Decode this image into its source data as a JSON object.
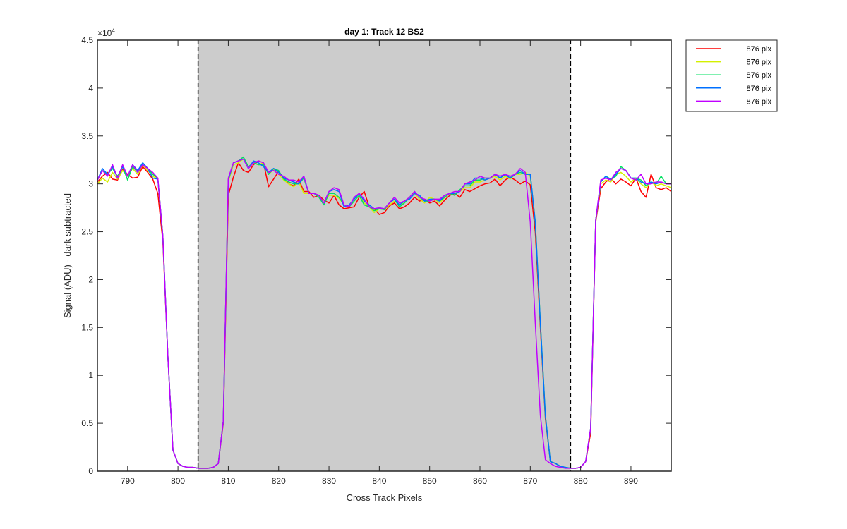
{
  "chart_data": {
    "type": "line",
    "title": "day 1: Track 12  BS2",
    "xlabel": "Cross Track Pixels",
    "ylabel": "Signal (ADU) - dark subtracted",
    "y_exponent_label": "×10",
    "y_exponent_power": "4",
    "xlim": [
      784,
      898
    ],
    "ylim": [
      0,
      4.5
    ],
    "y_scale_factor": 10000,
    "x_ticks": [
      790,
      800,
      810,
      820,
      830,
      840,
      850,
      860,
      870,
      880,
      890
    ],
    "x_tick_labels": [
      "790",
      "800",
      "810",
      "820",
      "830",
      "840",
      "850",
      "860",
      "870",
      "880",
      "890"
    ],
    "y_ticks": [
      0,
      0.5,
      1,
      1.5,
      2,
      2.5,
      3,
      3.5,
      4,
      4.5
    ],
    "y_tick_labels": [
      "0",
      "0.5",
      "1",
      "1.5",
      "2",
      "2.5",
      "3",
      "3.5",
      "4",
      "4.5"
    ],
    "shaded_region": {
      "x": [
        804,
        878
      ],
      "color": "#cccccc"
    },
    "vertical_dashed_lines": [
      804,
      878
    ],
    "grid": false,
    "legend_position": "outside-top-right",
    "series": [
      {
        "name": "876 pix",
        "color": "#ff0000",
        "x": [
          784,
          785,
          786,
          787,
          788,
          789,
          790,
          791,
          792,
          793,
          794,
          795,
          796,
          797,
          798,
          799,
          800,
          801,
          802,
          803,
          804,
          805,
          806,
          807,
          808,
          809,
          810,
          811,
          812,
          813,
          814,
          815,
          816,
          817,
          818,
          819,
          820,
          821,
          822,
          823,
          824,
          825,
          826,
          827,
          828,
          829,
          830,
          831,
          832,
          833,
          834,
          835,
          836,
          837,
          838,
          839,
          840,
          841,
          842,
          843,
          844,
          845,
          846,
          847,
          848,
          849,
          850,
          851,
          852,
          853,
          854,
          855,
          856,
          857,
          858,
          859,
          860,
          861,
          862,
          863,
          864,
          865,
          866,
          867,
          868,
          869,
          870,
          871,
          872,
          873,
          874,
          875,
          876,
          877,
          878,
          879,
          880,
          881,
          882,
          883,
          884,
          885,
          886,
          887,
          888,
          889,
          890,
          891,
          892,
          893,
          894,
          895,
          896,
          897,
          898
        ],
        "y": [
          3.02,
          3.08,
          3.12,
          3.05,
          3.04,
          3.15,
          3.1,
          3.06,
          3.07,
          3.18,
          3.12,
          3.05,
          2.9,
          2.4,
          1.2,
          0.22,
          0.08,
          0.05,
          0.04,
          0.04,
          0.03,
          0.03,
          0.03,
          0.04,
          0.08,
          0.5,
          2.88,
          3.07,
          3.22,
          3.14,
          3.12,
          3.2,
          3.24,
          3.22,
          2.97,
          3.05,
          3.13,
          3.06,
          3.0,
          2.98,
          3.05,
          2.92,
          2.92,
          2.86,
          2.88,
          2.83,
          2.8,
          2.88,
          2.78,
          2.74,
          2.75,
          2.76,
          2.86,
          2.92,
          2.76,
          2.74,
          2.68,
          2.7,
          2.77,
          2.8,
          2.74,
          2.76,
          2.8,
          2.86,
          2.82,
          2.84,
          2.8,
          2.82,
          2.77,
          2.83,
          2.88,
          2.9,
          2.86,
          2.94,
          2.92,
          2.95,
          2.98,
          3.0,
          3.01,
          3.05,
          2.98,
          3.04,
          3.07,
          3.04,
          3.0,
          3.03,
          2.99,
          2.5,
          1.5,
          0.55,
          0.1,
          0.08,
          0.05,
          0.04,
          0.03,
          0.03,
          0.04,
          0.1,
          0.4,
          2.6,
          2.95,
          3.02,
          3.06,
          3.0,
          3.05,
          3.02,
          2.98,
          3.06,
          2.92,
          2.86,
          3.1,
          2.96,
          2.94,
          2.96,
          2.92
        ]
      },
      {
        "name": "876 pix",
        "color": "#d4f000",
        "x": [
          784,
          785,
          786,
          787,
          788,
          789,
          790,
          791,
          792,
          793,
          794,
          795,
          796,
          797,
          798,
          799,
          800,
          801,
          802,
          803,
          804,
          805,
          806,
          807,
          808,
          809,
          810,
          811,
          812,
          813,
          814,
          815,
          816,
          817,
          818,
          819,
          820,
          821,
          822,
          823,
          824,
          825,
          826,
          827,
          828,
          829,
          830,
          831,
          832,
          833,
          834,
          835,
          836,
          837,
          838,
          839,
          840,
          841,
          842,
          843,
          844,
          845,
          846,
          847,
          848,
          849,
          850,
          851,
          852,
          853,
          854,
          855,
          856,
          857,
          858,
          859,
          860,
          861,
          862,
          863,
          864,
          865,
          866,
          867,
          868,
          869,
          870,
          871,
          872,
          873,
          874,
          875,
          876,
          877,
          878,
          879,
          880,
          881,
          882,
          883,
          884,
          885,
          886,
          887,
          888,
          889,
          890,
          891,
          892,
          893,
          894,
          895,
          896,
          897,
          898
        ],
        "y": [
          3.0,
          3.06,
          3.02,
          3.12,
          3.05,
          3.14,
          3.08,
          3.16,
          3.1,
          3.2,
          3.14,
          3.08,
          3.05,
          2.45,
          1.2,
          0.22,
          0.08,
          0.05,
          0.04,
          0.04,
          0.03,
          0.03,
          0.03,
          0.04,
          0.08,
          0.52,
          3.02,
          3.2,
          3.22,
          3.26,
          3.18,
          3.22,
          3.2,
          3.22,
          3.1,
          3.15,
          3.1,
          3.04,
          3.0,
          2.97,
          3.02,
          2.9,
          2.9,
          2.9,
          2.88,
          2.8,
          2.88,
          2.88,
          2.85,
          2.78,
          2.76,
          2.82,
          2.88,
          2.8,
          2.76,
          2.7,
          2.74,
          2.73,
          2.78,
          2.82,
          2.78,
          2.8,
          2.86,
          2.9,
          2.84,
          2.8,
          2.86,
          2.84,
          2.8,
          2.86,
          2.9,
          2.9,
          2.92,
          2.96,
          2.96,
          3.02,
          3.02,
          3.04,
          3.06,
          3.08,
          3.04,
          3.08,
          3.05,
          3.1,
          3.1,
          3.12,
          3.08,
          2.6,
          1.55,
          0.58,
          0.1,
          0.08,
          0.05,
          0.04,
          0.03,
          0.03,
          0.04,
          0.1,
          0.45,
          2.62,
          3.0,
          3.04,
          3.02,
          3.1,
          3.12,
          3.08,
          3.02,
          3.06,
          3.0,
          2.96,
          3.02,
          2.98,
          3.0,
          2.98,
          2.96
        ]
      },
      {
        "name": "876 pix",
        "color": "#00e060",
        "x": [
          784,
          785,
          786,
          787,
          788,
          789,
          790,
          791,
          792,
          793,
          794,
          795,
          796,
          797,
          798,
          799,
          800,
          801,
          802,
          803,
          804,
          805,
          806,
          807,
          808,
          809,
          810,
          811,
          812,
          813,
          814,
          815,
          816,
          817,
          818,
          819,
          820,
          821,
          822,
          823,
          824,
          825,
          826,
          827,
          828,
          829,
          830,
          831,
          832,
          833,
          834,
          835,
          836,
          837,
          838,
          839,
          840,
          841,
          842,
          843,
          844,
          845,
          846,
          847,
          848,
          849,
          850,
          851,
          852,
          853,
          854,
          855,
          856,
          857,
          858,
          859,
          860,
          861,
          862,
          863,
          864,
          865,
          866,
          867,
          868,
          869,
          870,
          871,
          872,
          873,
          874,
          875,
          876,
          877,
          878,
          879,
          880,
          881,
          882,
          883,
          884,
          885,
          886,
          887,
          888,
          889,
          890,
          891,
          892,
          893,
          894,
          895,
          896,
          897,
          898
        ],
        "y": [
          3.04,
          3.14,
          3.1,
          3.16,
          3.08,
          3.18,
          3.04,
          3.18,
          3.12,
          3.22,
          3.16,
          3.1,
          3.06,
          2.45,
          1.2,
          0.22,
          0.08,
          0.05,
          0.04,
          0.04,
          0.03,
          0.03,
          0.03,
          0.04,
          0.08,
          0.52,
          3.04,
          3.22,
          3.24,
          3.28,
          3.18,
          3.22,
          3.2,
          3.2,
          3.1,
          3.16,
          3.14,
          3.05,
          3.02,
          3.0,
          3.0,
          3.06,
          2.9,
          2.9,
          2.86,
          2.78,
          2.9,
          2.9,
          2.86,
          2.78,
          2.76,
          2.82,
          2.88,
          2.78,
          2.76,
          2.72,
          2.74,
          2.73,
          2.8,
          2.84,
          2.76,
          2.8,
          2.86,
          2.92,
          2.86,
          2.82,
          2.82,
          2.84,
          2.82,
          2.86,
          2.9,
          2.88,
          2.94,
          2.98,
          2.98,
          3.04,
          3.04,
          3.06,
          3.06,
          3.1,
          3.06,
          3.1,
          3.06,
          3.1,
          3.12,
          3.1,
          3.1,
          2.6,
          1.55,
          0.58,
          0.1,
          0.08,
          0.05,
          0.04,
          0.03,
          0.03,
          0.04,
          0.1,
          0.45,
          2.62,
          3.02,
          3.08,
          3.05,
          3.08,
          3.18,
          3.14,
          3.06,
          3.06,
          3.04,
          2.98,
          3.02,
          3.0,
          3.08,
          3.0,
          3.0
        ]
      },
      {
        "name": "876 pix",
        "color": "#0070ff",
        "x": [
          784,
          785,
          786,
          787,
          788,
          789,
          790,
          791,
          792,
          793,
          794,
          795,
          796,
          797,
          798,
          799,
          800,
          801,
          802,
          803,
          804,
          805,
          806,
          807,
          808,
          809,
          810,
          811,
          812,
          813,
          814,
          815,
          816,
          817,
          818,
          819,
          820,
          821,
          822,
          823,
          824,
          825,
          826,
          827,
          828,
          829,
          830,
          831,
          832,
          833,
          834,
          835,
          836,
          837,
          838,
          839,
          840,
          841,
          842,
          843,
          844,
          845,
          846,
          847,
          848,
          849,
          850,
          851,
          852,
          853,
          854,
          855,
          856,
          857,
          858,
          859,
          860,
          861,
          862,
          863,
          864,
          865,
          866,
          867,
          868,
          869,
          870,
          871,
          872,
          873,
          874,
          875,
          876,
          877,
          878,
          879,
          880,
          881,
          882,
          883,
          884,
          885,
          886,
          887,
          888,
          889,
          890,
          891,
          892,
          893,
          894,
          895,
          896,
          897,
          898
        ],
        "y": [
          3.04,
          3.16,
          3.1,
          3.18,
          3.06,
          3.18,
          3.08,
          3.2,
          3.14,
          3.22,
          3.16,
          3.06,
          3.05,
          2.45,
          1.2,
          0.22,
          0.08,
          0.05,
          0.04,
          0.04,
          0.03,
          0.03,
          0.03,
          0.04,
          0.08,
          0.52,
          3.04,
          3.22,
          3.24,
          3.26,
          3.16,
          3.24,
          3.22,
          3.18,
          3.12,
          3.16,
          3.12,
          3.06,
          3.04,
          3.02,
          3.0,
          3.08,
          2.9,
          2.9,
          2.88,
          2.8,
          2.92,
          2.94,
          2.92,
          2.76,
          2.78,
          2.84,
          2.9,
          2.82,
          2.78,
          2.74,
          2.75,
          2.74,
          2.8,
          2.84,
          2.78,
          2.82,
          2.84,
          2.9,
          2.88,
          2.82,
          2.84,
          2.84,
          2.82,
          2.88,
          2.9,
          2.9,
          2.92,
          3.0,
          3.0,
          3.06,
          3.06,
          3.04,
          3.06,
          3.1,
          3.06,
          3.1,
          3.06,
          3.1,
          3.14,
          3.1,
          3.1,
          2.6,
          1.55,
          0.58,
          0.1,
          0.08,
          0.05,
          0.04,
          0.03,
          0.03,
          0.04,
          0.1,
          0.45,
          2.62,
          3.02,
          3.08,
          3.04,
          3.1,
          3.16,
          3.14,
          3.06,
          3.06,
          3.02,
          3.0,
          3.02,
          3.0,
          3.02,
          3.0,
          3.0
        ]
      },
      {
        "name": "876 pix",
        "color": "#c000ff",
        "x": [
          784,
          785,
          786,
          787,
          788,
          789,
          790,
          791,
          792,
          793,
          794,
          795,
          796,
          797,
          798,
          799,
          800,
          801,
          802,
          803,
          804,
          805,
          806,
          807,
          808,
          809,
          810,
          811,
          812,
          813,
          814,
          815,
          816,
          817,
          818,
          819,
          820,
          821,
          822,
          823,
          824,
          825,
          826,
          827,
          828,
          829,
          830,
          831,
          832,
          833,
          834,
          835,
          836,
          837,
          838,
          839,
          840,
          841,
          842,
          843,
          844,
          845,
          846,
          847,
          848,
          849,
          850,
          851,
          852,
          853,
          854,
          855,
          856,
          857,
          858,
          859,
          860,
          861,
          862,
          863,
          864,
          865,
          866,
          867,
          868,
          869,
          870,
          871,
          872,
          873,
          874,
          875,
          876,
          877,
          878,
          879,
          880,
          881,
          882,
          883,
          884,
          885,
          886,
          887,
          888,
          889,
          890,
          891,
          892,
          893,
          894,
          895,
          896,
          897,
          898
        ],
        "y": [
          3.04,
          3.14,
          3.08,
          3.2,
          3.06,
          3.2,
          3.08,
          3.2,
          3.12,
          3.2,
          3.16,
          3.12,
          3.06,
          2.45,
          1.2,
          0.22,
          0.08,
          0.05,
          0.04,
          0.04,
          0.03,
          0.03,
          0.03,
          0.04,
          0.08,
          0.52,
          3.06,
          3.22,
          3.24,
          3.26,
          3.16,
          3.22,
          3.24,
          3.22,
          3.12,
          3.14,
          3.1,
          3.08,
          3.04,
          3.04,
          3.02,
          3.08,
          2.9,
          2.9,
          2.88,
          2.8,
          2.92,
          2.96,
          2.94,
          2.78,
          2.76,
          2.86,
          2.9,
          2.84,
          2.76,
          2.74,
          2.75,
          2.74,
          2.8,
          2.86,
          2.8,
          2.82,
          2.86,
          2.92,
          2.86,
          2.84,
          2.82,
          2.84,
          2.84,
          2.88,
          2.9,
          2.92,
          2.92,
          3.0,
          3.02,
          3.04,
          3.08,
          3.06,
          3.06,
          3.1,
          3.08,
          3.1,
          3.08,
          3.1,
          3.16,
          3.12,
          2.6,
          1.55,
          0.58,
          0.12,
          0.08,
          0.05,
          0.04,
          0.03,
          0.03,
          0.03,
          0.04,
          0.1,
          0.45,
          2.62,
          3.04,
          3.06,
          3.04,
          3.12,
          3.16,
          3.14,
          3.06,
          3.04,
          3.1,
          3.0,
          3.0,
          3.02,
          3.02,
          3.0,
          3.0
        ]
      }
    ]
  }
}
